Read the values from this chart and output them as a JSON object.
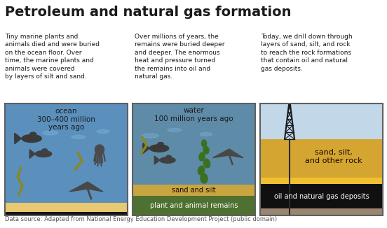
{
  "title": "Petroleum and natural gas formation",
  "source": "Data source: Adapted from National Energy Education Development Project (public domain)",
  "desc1": "Tiny marine plants and\nanimals died and were buried\non the ocean floor. Over\ntime, the marine plants and\nanimals were covered\nby layers of silt and sand.",
  "desc2": "Over millions of years, the\nremains were buried deeper\nand deeper. The enormous\nheat and pressure turned\nthe remains into oil and\nnatural gas.",
  "desc3": "Today, we drill down through\nlayers of sand, silt, and rock\nto reach the rock formations\nthat contain oil and natural\ngas deposits.",
  "panel1_label": "ocean\n300–400 million\nyears ago",
  "panel2_label": "water\n100 million years ago",
  "panel3_label_sand": "sand, silt,\nand other rock",
  "panel3_label_oil": "oil and natural gas deposits",
  "panel3_label_plant": "plant and animal remains",
  "panel2_label_sand": "sand and silt",
  "p1_water": "#5b8fbc",
  "p1_sand": "#e8c870",
  "p1_dark": "#151515",
  "p1_shimmer": "#7ab2d8",
  "p2_water": "#5e8ba8",
  "p2_sand_silt": "#c8a540",
  "p2_plant": "#4e7030",
  "p3_sky": "#c2d8e8",
  "p3_sand": "#d4a530",
  "p3_yellow": "#f0c030",
  "p3_oil": "#101010",
  "p3_brown": "#9a8570",
  "fish_color": "#3a3a3a",
  "ray_color": "#484848",
  "worm_color": "#8a8820",
  "seaweed_color": "#3a7020",
  "octopus_color": "#4a4a4a",
  "bg": "#ffffff",
  "txt": "#1a1a1a",
  "border": "#606060",
  "title_size": 14,
  "desc_size": 6.5,
  "label_size": 7.5,
  "layer_label_size": 7.0,
  "source_size": 6.0
}
